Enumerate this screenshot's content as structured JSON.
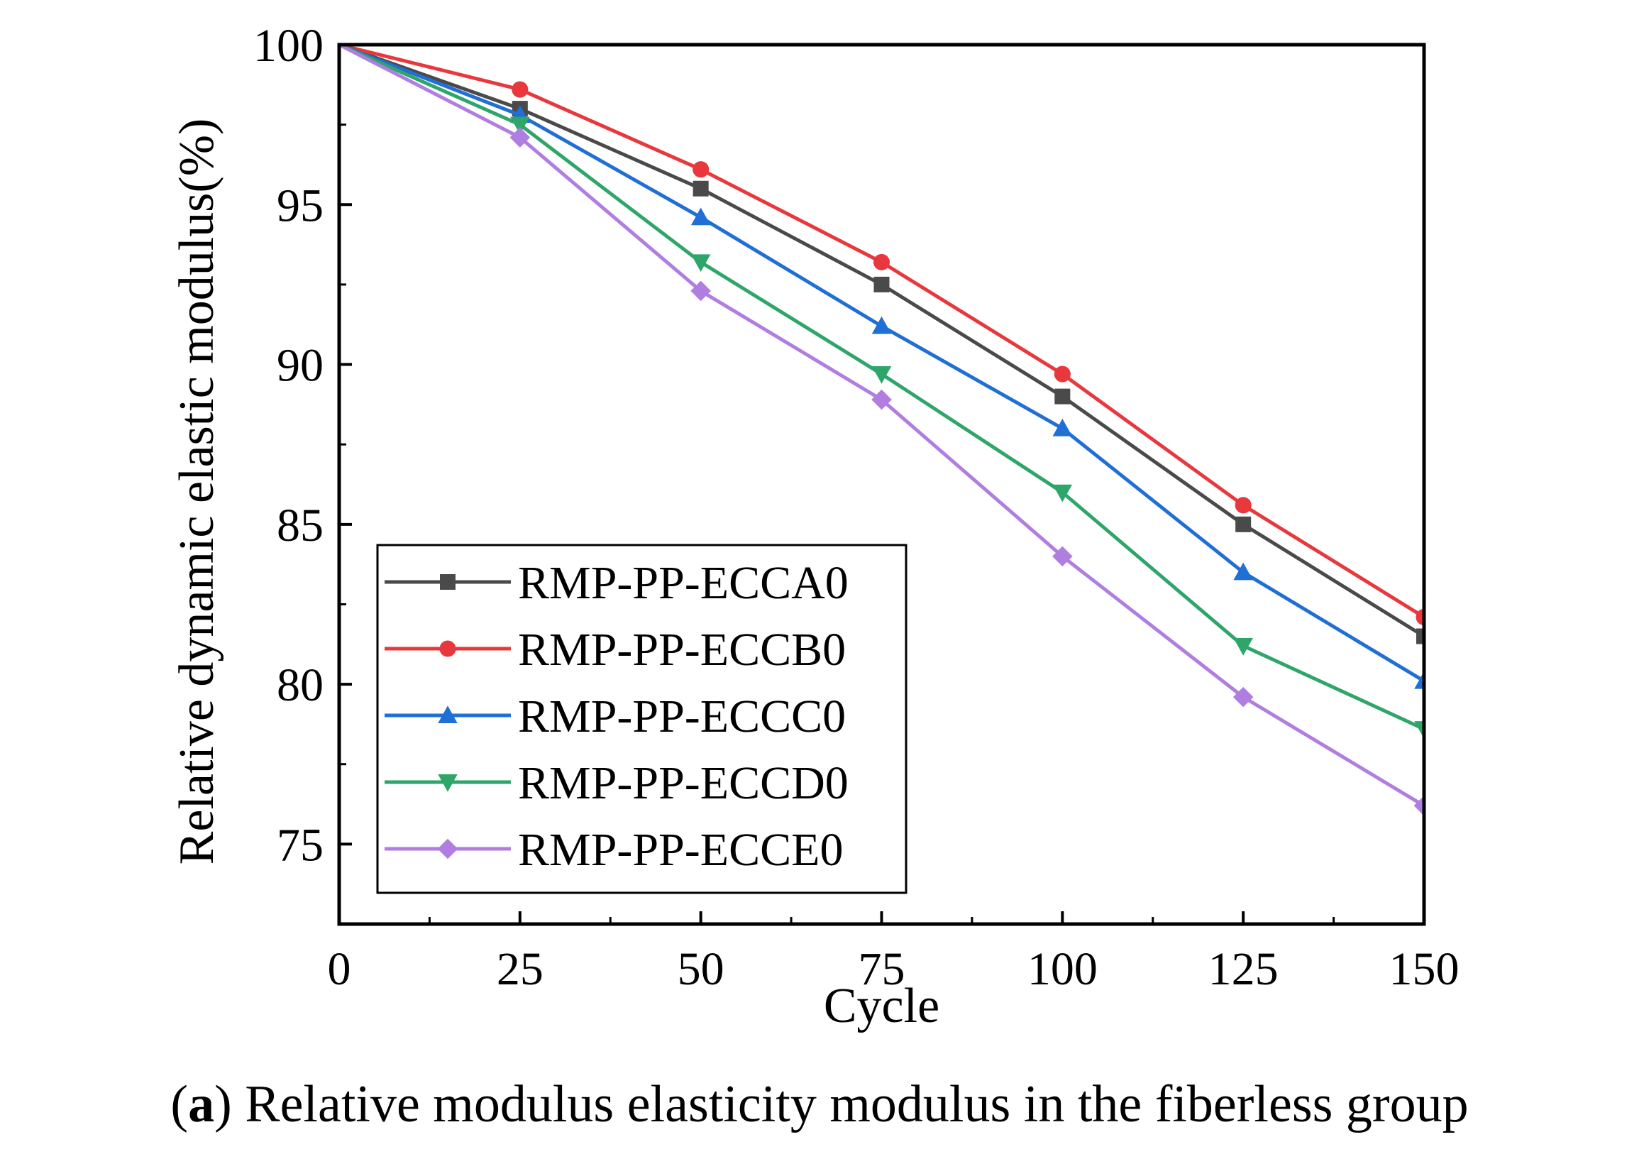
{
  "chart_data": {
    "type": "line",
    "title": "",
    "xlabel": "Cycle",
    "ylabel": "Relative dynamic elastic modulus(%)",
    "x": [
      0,
      25,
      50,
      75,
      100,
      125,
      150
    ],
    "xlim": [
      0,
      150
    ],
    "ylim": [
      72.5,
      100
    ],
    "xticks": [
      0,
      25,
      50,
      75,
      100,
      125,
      150
    ],
    "yticks": [
      75,
      80,
      85,
      90,
      95,
      100
    ],
    "grid": false,
    "legend_position": "bottom-left",
    "series": [
      {
        "name": "RMP-PP-ECCA0",
        "color": "#4a4a4a",
        "marker": "square",
        "values": [
          100,
          98.0,
          95.5,
          92.5,
          89.0,
          85.0,
          81.5
        ]
      },
      {
        "name": "RMP-PP-ECCB0",
        "color": "#e8383d",
        "marker": "circle",
        "values": [
          100,
          98.6,
          96.1,
          93.2,
          89.7,
          85.6,
          82.1
        ]
      },
      {
        "name": "RMP-PP-ECCC0",
        "color": "#1f6fd6",
        "marker": "triangle-up",
        "values": [
          100,
          97.8,
          94.6,
          91.2,
          88.0,
          83.5,
          80.1
        ]
      },
      {
        "name": "RMP-PP-ECCD0",
        "color": "#2ea66a",
        "marker": "triangle-down",
        "values": [
          100,
          97.5,
          93.2,
          89.7,
          86.0,
          81.2,
          78.6
        ]
      },
      {
        "name": "RMP-PP-ECCE0",
        "color": "#b07ee0",
        "marker": "diamond",
        "values": [
          100,
          97.1,
          92.3,
          88.9,
          84.0,
          79.6,
          76.2
        ]
      }
    ]
  },
  "caption": {
    "label": "a",
    "open_paren": "(",
    "close_paren": ")",
    "text": " Relative modulus elasticity modulus in the fiberless group"
  }
}
